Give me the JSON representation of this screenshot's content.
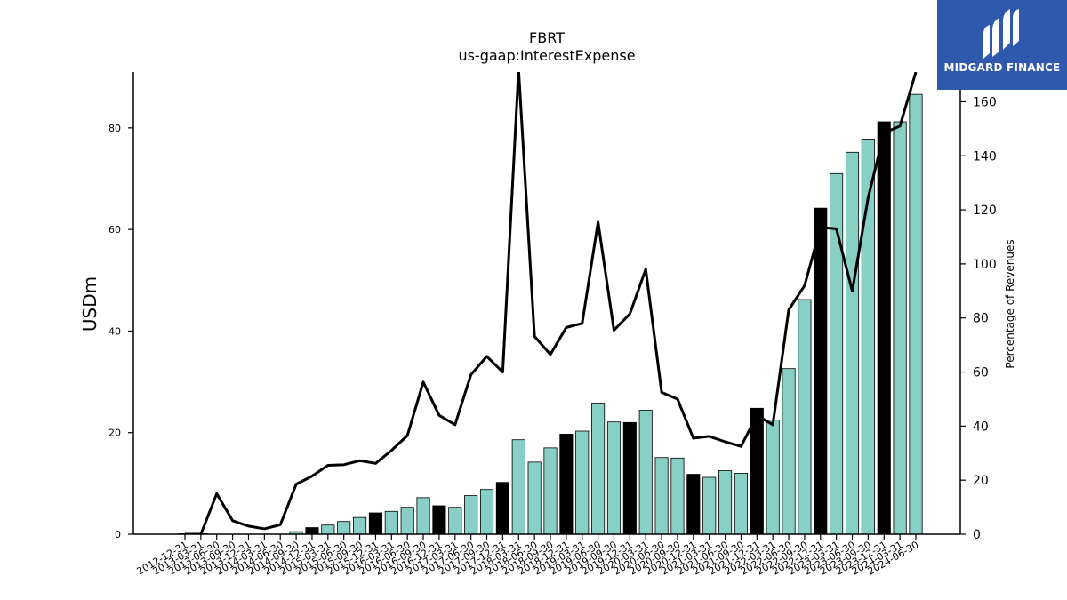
{
  "chart_data": {
    "type": "bar",
    "title": "FBRT",
    "subtitle": "us-gaap:InterestExpense",
    "ylabel": "USDm",
    "ylabel_right": "Percentage of Revenues",
    "ylim": [
      0,
      91
    ],
    "ylim_right": [
      0,
      171
    ],
    "yticks": [
      0,
      20,
      40,
      60,
      80
    ],
    "yticks_right": [
      0,
      20,
      40,
      60,
      80,
      100,
      120,
      140,
      160
    ],
    "categories": [
      "2012-12-31",
      "2013-03-31",
      "2013-06-30",
      "2013-09-30",
      "2013-12-31",
      "2014-03-31",
      "2014-06-30",
      "2014-09-30",
      "2014-12-31",
      "2015-03-31",
      "2015-06-30",
      "2015-09-30",
      "2015-12-31",
      "2016-03-31",
      "2016-06-30",
      "2016-09-30",
      "2016-12-31",
      "2017-03-31",
      "2017-06-30",
      "2017-09-30",
      "2017-12-31",
      "2018-03-31",
      "2018-06-30",
      "2018-09-30",
      "2018-12-31",
      "2019-03-31",
      "2019-06-30",
      "2019-09-30",
      "2019-12-31",
      "2020-03-31",
      "2020-06-30",
      "2020-09-30",
      "2020-12-31",
      "2021-03-31",
      "2021-06-30",
      "2021-09-30",
      "2021-12-31",
      "2022-03-31",
      "2022-06-30",
      "2022-09-30",
      "2022-12-31",
      "2023-03-31",
      "2023-06-30",
      "2023-09-30",
      "2023-12-31",
      "2024-03-31",
      "2024-06-30"
    ],
    "series": [
      {
        "kind": "bar",
        "values": [
          0.1,
          0.1,
          0,
          0,
          0,
          0,
          0,
          0.5,
          1.3,
          1.8,
          2.5,
          3.3,
          4.2,
          4.5,
          5.3,
          7.2,
          5.6,
          5.3,
          7.6,
          8.8,
          10.2,
          18.6,
          14.2,
          17.0,
          19.7,
          20.3,
          25.8,
          22.1,
          22.0,
          24.4,
          15.1,
          15.0,
          11.8,
          11.2,
          12.5,
          12.0,
          24.8,
          22.5,
          32.6,
          46.2,
          64.2,
          71.0,
          75.2,
          77.8,
          81.2,
          81.2,
          86.6
        ],
        "q4_highlight": [
          false,
          false,
          false,
          false,
          false,
          false,
          false,
          false,
          true,
          false,
          false,
          false,
          true,
          false,
          false,
          false,
          true,
          false,
          false,
          false,
          true,
          false,
          false,
          false,
          true,
          false,
          false,
          false,
          true,
          false,
          false,
          false,
          true,
          false,
          false,
          false,
          true,
          false,
          false,
          false,
          true,
          false,
          false,
          false,
          true,
          false,
          false
        ]
      },
      {
        "kind": "line",
        "axis": "right",
        "values": [
          0,
          0,
          15,
          5,
          3,
          2,
          3.5,
          18.5,
          21.5,
          25.5,
          25.7,
          27.2,
          26.2,
          31,
          36.5,
          56.3,
          44,
          40.5,
          59,
          65.8,
          60,
          172,
          73.2,
          66.5,
          76.5,
          78,
          115.5,
          75.5,
          81.5,
          98,
          52.5,
          50,
          35.5,
          36.2,
          34.2,
          32.5,
          44,
          40.5,
          83,
          92,
          113.5,
          113,
          90,
          124.5,
          148.5,
          151,
          171
        ]
      }
    ],
    "colors": {
      "bar": "#88d0c5",
      "bar_q4": "#000000",
      "line": "#000000"
    },
    "grid": false
  },
  "logo": {
    "text": "MIDGARD FINANCE",
    "bg": "#2f59ad"
  }
}
